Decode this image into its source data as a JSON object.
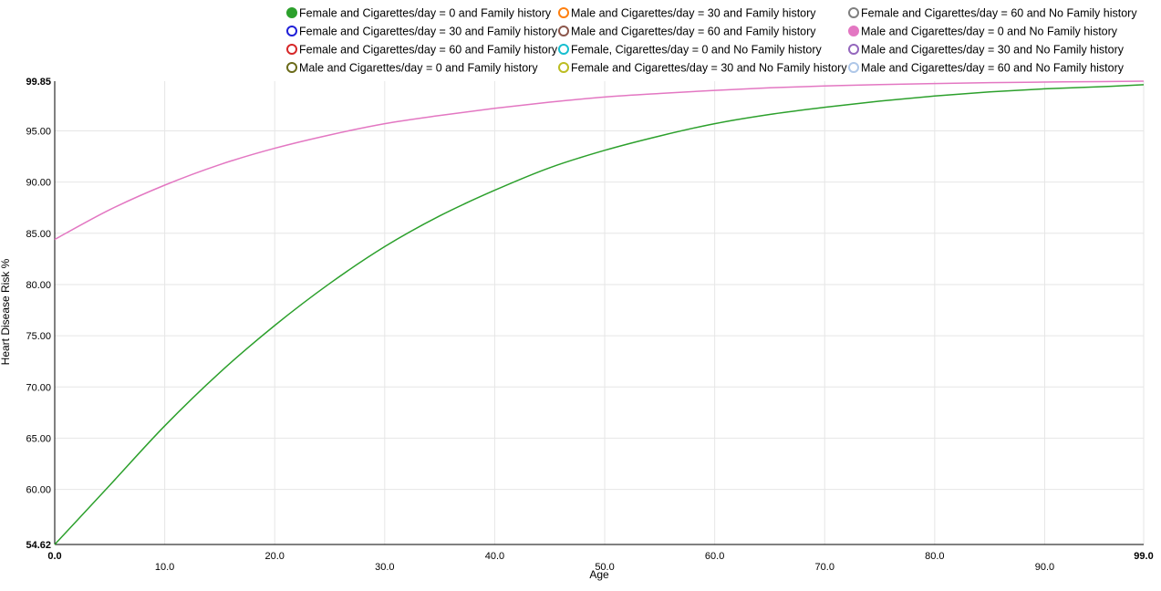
{
  "chart_data": {
    "type": "line",
    "xlabel": "Age",
    "ylabel": "Heart Disease Risk %",
    "xlim": [
      0,
      99
    ],
    "ylim": [
      54.62,
      99.85
    ],
    "x_ticks": [
      "0.0",
      "10.0",
      "20.0",
      "30.0",
      "40.0",
      "50.0",
      "60.0",
      "70.0",
      "80.0",
      "90.0",
      "99.0"
    ],
    "y_ticks": [
      "54.62",
      "60.00",
      "65.00",
      "70.00",
      "75.00",
      "80.00",
      "85.00",
      "90.00",
      "95.00",
      "99.85"
    ],
    "grid": true,
    "legend_position": "top",
    "legend": [
      {
        "name": "Female and Cigarettes/day = 0 and Family history",
        "color": "#2ca02c",
        "filled": true
      },
      {
        "name": "Female and Cigarettes/day = 30 and Family history",
        "color": "#1f1fd8",
        "filled": false
      },
      {
        "name": "Female and Cigarettes/day = 60 and Family history",
        "color": "#d62728",
        "filled": false
      },
      {
        "name": "Male and Cigarettes/day = 0 and Family history",
        "color": "#6b6b1a",
        "filled": false
      },
      {
        "name": "Male and Cigarettes/day = 30 and Family history",
        "color": "#ff7f0e",
        "filled": false
      },
      {
        "name": "Male and Cigarettes/day = 60 and Family history",
        "color": "#8c564b",
        "filled": false
      },
      {
        "name": "Female, Cigarettes/day = 0 and No Family history",
        "color": "#17becf",
        "filled": false
      },
      {
        "name": "Female and Cigarettes/day = 30 and No Family history",
        "color": "#bcbd22",
        "filled": false
      },
      {
        "name": "Female and Cigarettes/day = 60 and No Family history",
        "color": "#7f7f7f",
        "filled": false
      },
      {
        "name": "Male and Cigarettes/day = 0 and No Family history",
        "color": "#e377c2",
        "filled": true
      },
      {
        "name": "Male and Cigarettes/day = 30 and No Family history",
        "color": "#9467bd",
        "filled": false
      },
      {
        "name": "Male and Cigarettes/day = 60 and No Family history",
        "color": "#aec7e8",
        "filled": false
      }
    ],
    "series": [
      {
        "name": "Female and Cigarettes/day = 0 and Family history",
        "color": "#2ca02c",
        "x": [
          0,
          5,
          10,
          15,
          20,
          25,
          30,
          35,
          40,
          45,
          50,
          55,
          60,
          65,
          70,
          75,
          80,
          85,
          90,
          95,
          99
        ],
        "y": [
          54.62,
          60.4,
          66.2,
          71.4,
          76.0,
          80.1,
          83.7,
          86.7,
          89.2,
          91.4,
          93.1,
          94.5,
          95.7,
          96.6,
          97.3,
          97.9,
          98.4,
          98.8,
          99.1,
          99.3,
          99.5
        ]
      },
      {
        "name": "Male and Cigarettes/day = 0 and No Family history",
        "color": "#e377c2",
        "x": [
          0,
          5,
          10,
          15,
          20,
          25,
          30,
          35,
          40,
          45,
          50,
          55,
          60,
          65,
          70,
          75,
          80,
          85,
          90,
          95,
          99
        ],
        "y": [
          84.4,
          87.3,
          89.7,
          91.7,
          93.3,
          94.6,
          95.7,
          96.5,
          97.2,
          97.8,
          98.3,
          98.65,
          98.95,
          99.2,
          99.38,
          99.52,
          99.62,
          99.7,
          99.76,
          99.81,
          99.85
        ]
      }
    ]
  }
}
